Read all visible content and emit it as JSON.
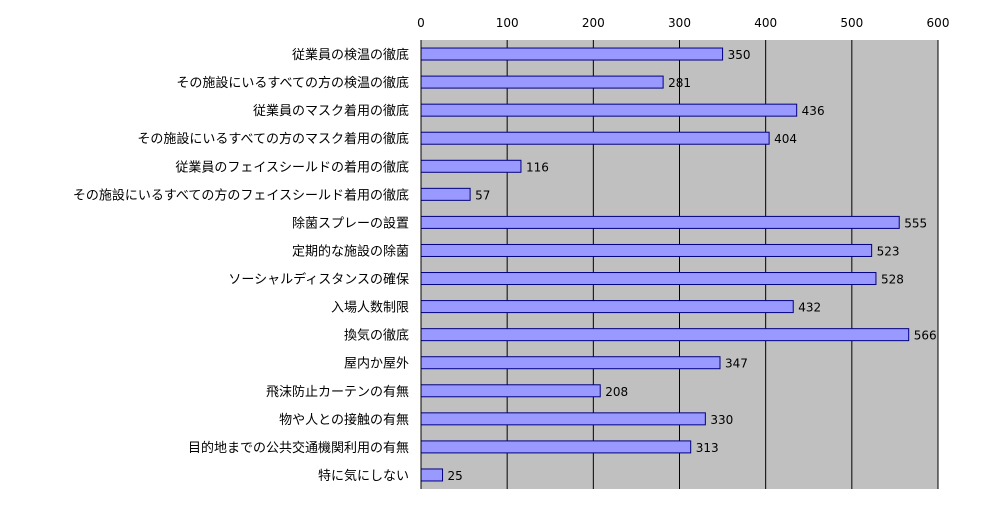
{
  "chart_data": {
    "type": "bar",
    "orientation": "horizontal",
    "title": "",
    "xlabel": "",
    "ylabel": "",
    "xlim": [
      0,
      600
    ],
    "ticks": [
      "0",
      "100",
      "200",
      "300",
      "400",
      "500",
      "600"
    ],
    "grid": true,
    "legend": "none",
    "categories": [
      "従業員の検温の徹底",
      "その施設にいるすべての方の検温の徹底",
      "従業員のマスク着用の徹底",
      "その施設にいるすべての方のマスク着用の徹底",
      "従業員のフェイスシールドの着用の徹底",
      "その施設にいるすべての方のフェイスシールド着用の徹底",
      "除菌スプレーの設置",
      "定期的な施設の除菌",
      "ソーシャルディスタンスの確保",
      "入場人数制限",
      "換気の徹底",
      "屋内か屋外",
      "飛沫防止カーテンの有無",
      "物や人との接触の有無",
      "目的地までの公共交通機関利用の有無",
      "特に気にしない"
    ],
    "values": [
      350,
      281,
      436,
      404,
      116,
      57,
      555,
      523,
      528,
      432,
      566,
      347,
      208,
      330,
      313,
      25
    ],
    "colors": {
      "bar_fill": "#9999ff",
      "bar_stroke": "#000080",
      "plot_background": "#c0c0c0",
      "gridline": "#000000"
    }
  }
}
